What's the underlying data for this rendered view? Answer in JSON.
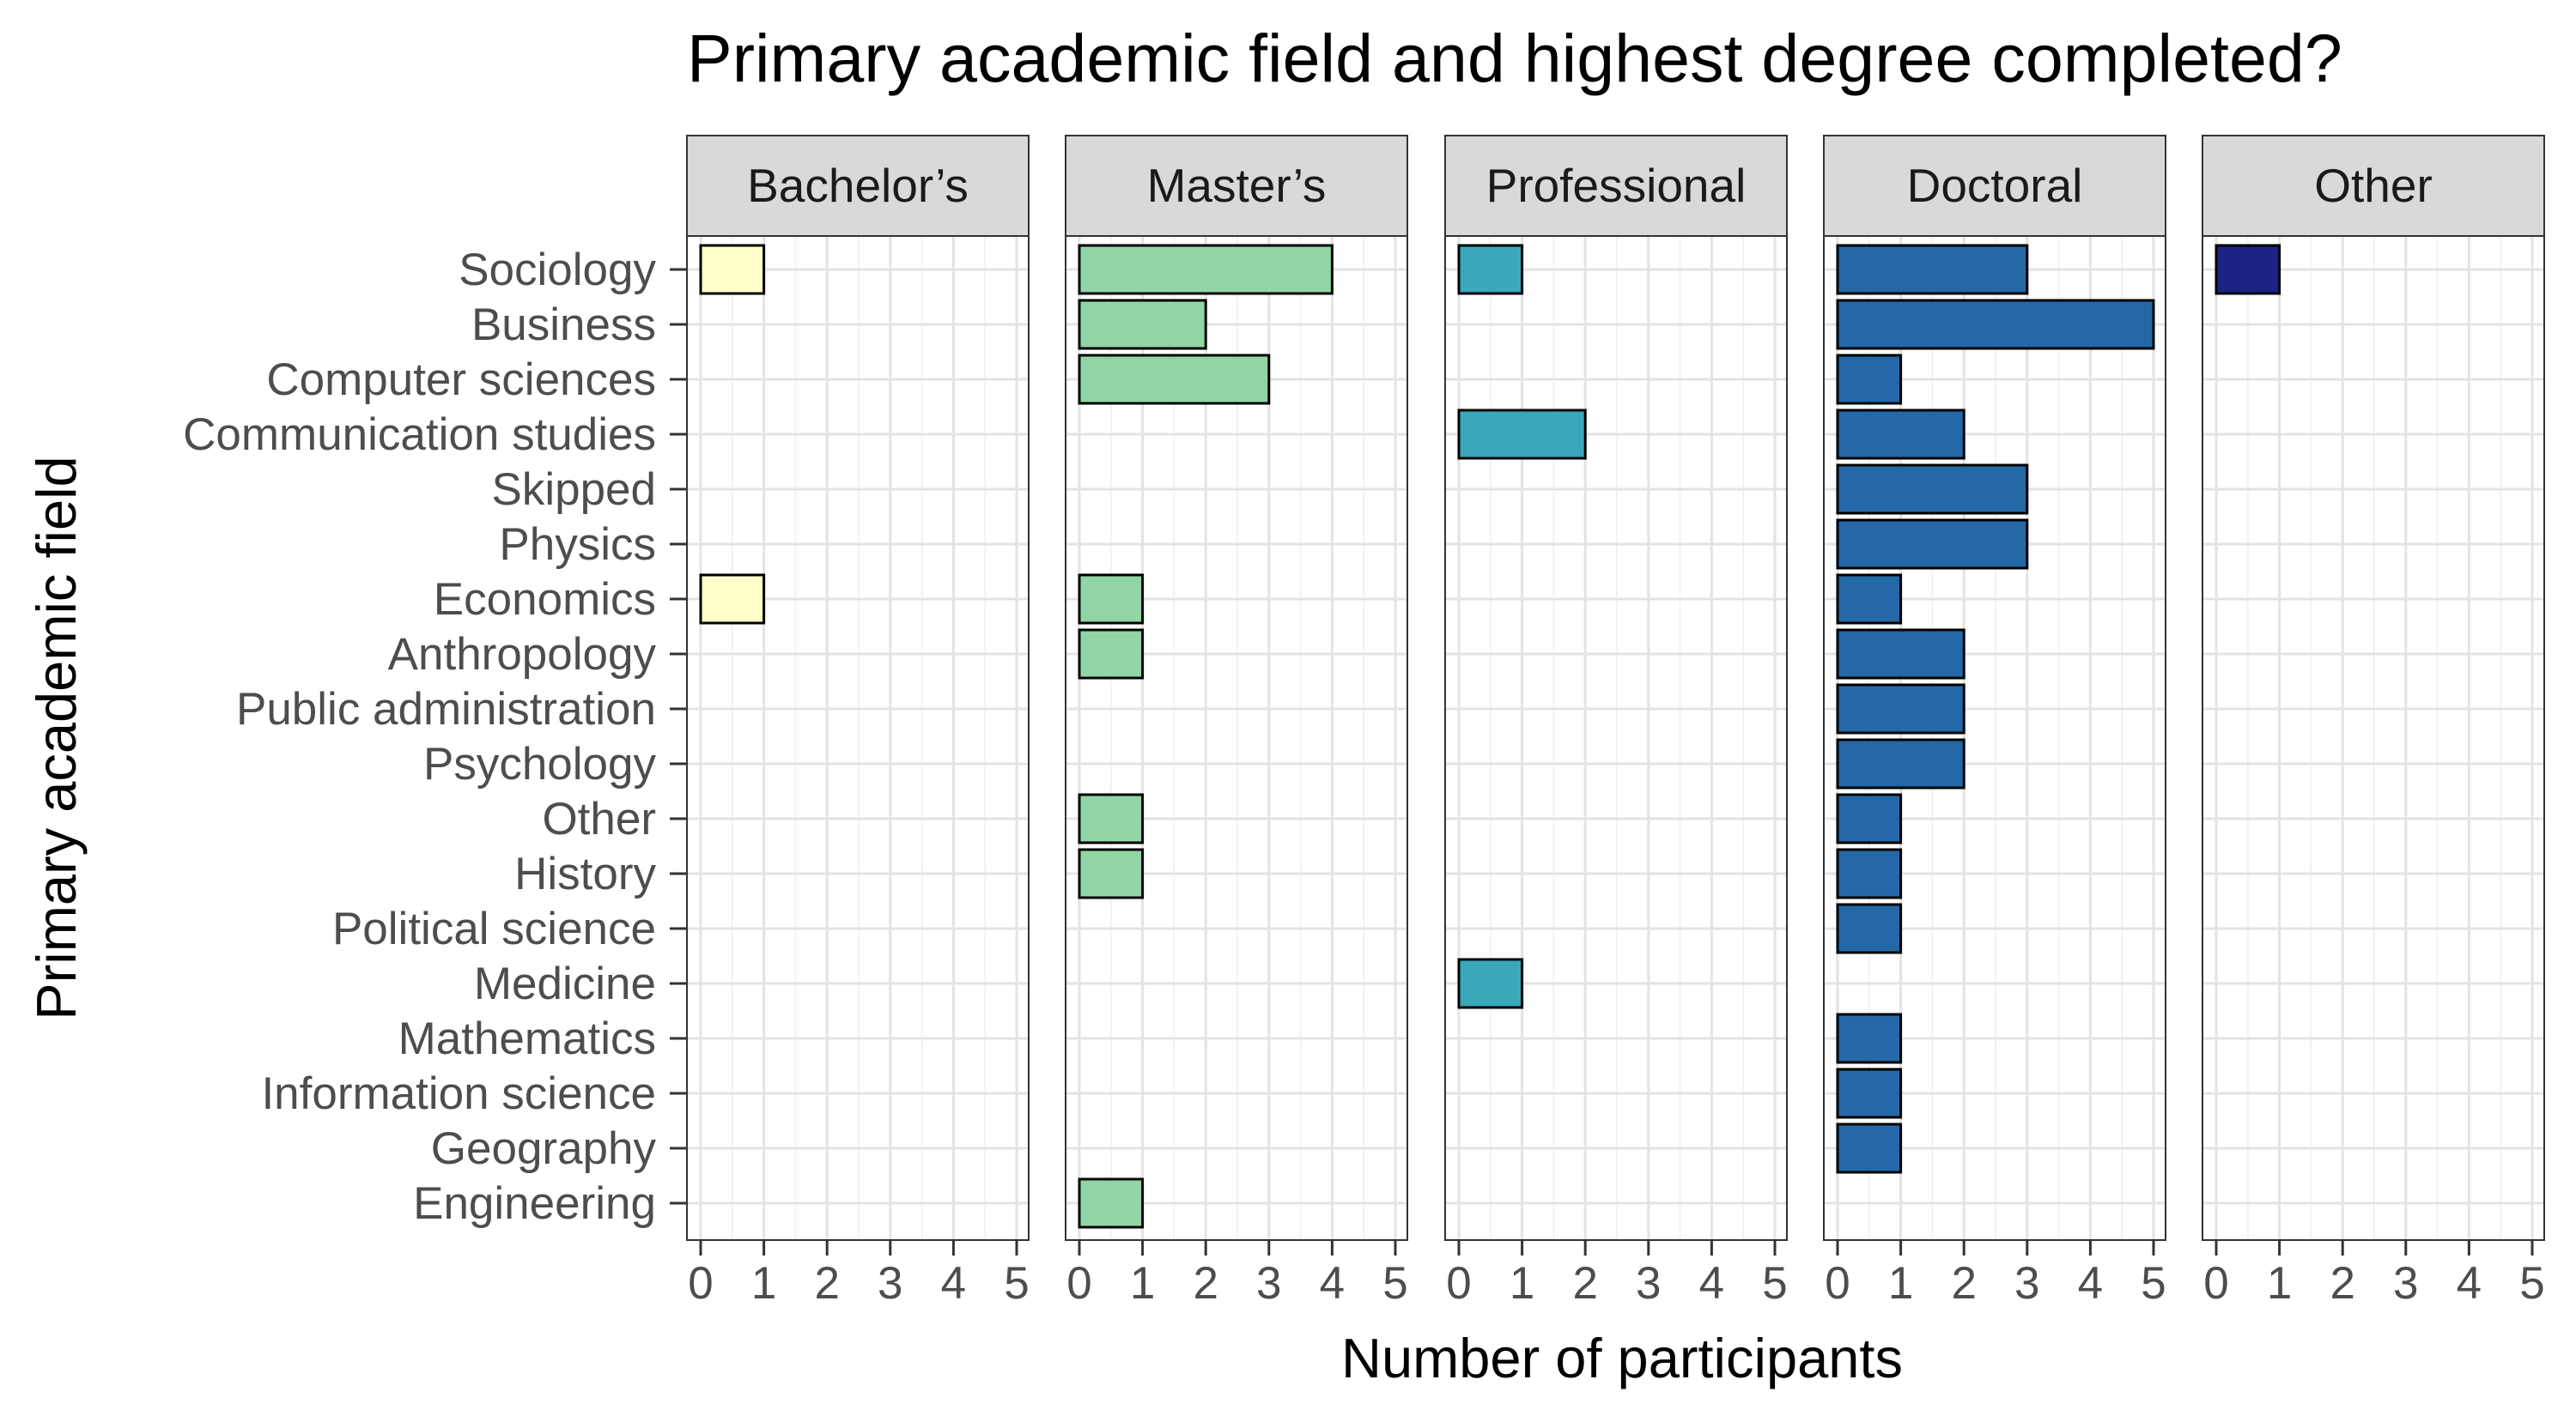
{
  "chart_data": {
    "type": "bar",
    "orientation": "horizontal",
    "title": "Primary academic field and highest degree completed?",
    "xlabel": "Number of participants",
    "ylabel": "Primary academic field",
    "xlim": [
      0,
      5
    ],
    "xticks": [
      "0",
      "1",
      "2",
      "3",
      "4",
      "5"
    ],
    "grid": true,
    "categories": [
      "Sociology",
      "Business",
      "Computer sciences",
      "Communication studies",
      "Skipped",
      "Physics",
      "Economics",
      "Anthropology",
      "Public administration",
      "Psychology",
      "Other",
      "History",
      "Political science",
      "Medicine",
      "Mathematics",
      "Information science",
      "Geography",
      "Engineering"
    ],
    "series": [
      {
        "name": "Bachelor’s",
        "color": "#ffffcc",
        "values": [
          1,
          0,
          0,
          0,
          0,
          0,
          1,
          0,
          0,
          0,
          0,
          0,
          0,
          0,
          0,
          0,
          0,
          0
        ]
      },
      {
        "name": "Master’s",
        "color": "#91d5a4",
        "values": [
          4,
          2,
          3,
          0,
          0,
          0,
          1,
          1,
          0,
          0,
          1,
          1,
          0,
          0,
          0,
          0,
          0,
          1
        ]
      },
      {
        "name": "Professional",
        "color": "#3aa8bb",
        "values": [
          1,
          0,
          0,
          2,
          0,
          0,
          0,
          0,
          0,
          0,
          0,
          0,
          0,
          1,
          0,
          0,
          0,
          0
        ]
      },
      {
        "name": "Doctoral",
        "color": "#2468a8",
        "values": [
          3,
          5,
          1,
          2,
          3,
          3,
          1,
          2,
          2,
          2,
          1,
          1,
          1,
          0,
          1,
          1,
          1,
          0
        ]
      },
      {
        "name": "Other",
        "color": "#1d2382",
        "values": [
          1,
          0,
          0,
          0,
          0,
          0,
          0,
          0,
          0,
          0,
          0,
          0,
          0,
          0,
          0,
          0,
          0,
          0
        ]
      }
    ]
  }
}
